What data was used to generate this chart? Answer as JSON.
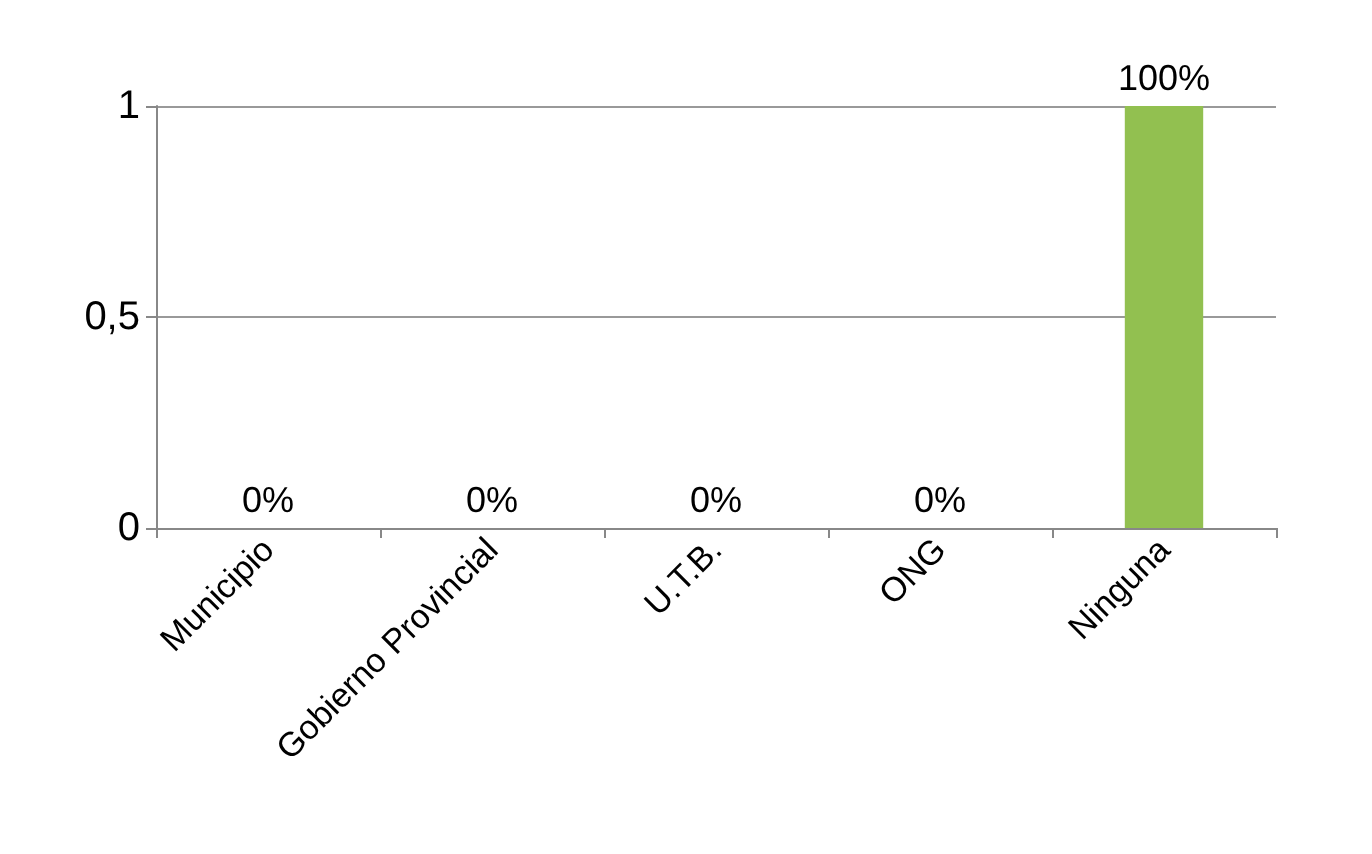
{
  "chart_data": {
    "type": "bar",
    "categories": [
      "Municipio",
      "Gobierno Provincial",
      "U.T.B.",
      "ONG",
      "Ninguna"
    ],
    "values": [
      0,
      0,
      0,
      0,
      1
    ],
    "colors": [
      "#a0403c",
      "#c8c400",
      "#0099c8",
      "#6a2c8a",
      "#92c050"
    ],
    "value_labels": [
      "0%",
      "0%",
      "0%",
      "0%",
      "100%"
    ],
    "ylim": [
      0,
      1
    ],
    "yticks": [
      {
        "value": 0,
        "label": "0"
      },
      {
        "value": 0.5,
        "label": "0,5"
      },
      {
        "value": 1,
        "label": "1"
      }
    ],
    "grid": "y"
  }
}
